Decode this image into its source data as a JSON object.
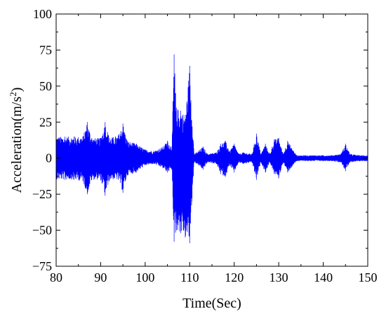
{
  "chart_data": {
    "type": "line",
    "title": "",
    "xlabel": "Time(Sec)",
    "ylabel": "Acceleration(m/s²)",
    "ylabel_parts": {
      "base": "Acceleration(m/s",
      "sup": "2",
      "close": ")"
    },
    "xlim": [
      80,
      150
    ],
    "ylim": [
      -75,
      100
    ],
    "xticks": [
      80,
      90,
      100,
      110,
      120,
      130,
      140,
      150
    ],
    "yticks": [
      -75,
      -50,
      -25,
      0,
      25,
      50,
      75,
      100
    ],
    "grid": false,
    "legend": "none",
    "series": [
      {
        "color": "#0000ff",
        "envelope": {
          "x": [
            80,
            82,
            84,
            86,
            87,
            88,
            90,
            91,
            92,
            94,
            95,
            96,
            98,
            100,
            102,
            104,
            105,
            106,
            106.5,
            107,
            108,
            109,
            110,
            111,
            112,
            113,
            114,
            116,
            117,
            118,
            119,
            120,
            121,
            122,
            124,
            125,
            126,
            127,
            128,
            129,
            130,
            131,
            132,
            134,
            136,
            138,
            140,
            142,
            144,
            145,
            146,
            148,
            150
          ],
          "upper": [
            15,
            15,
            15,
            15,
            25,
            14,
            14,
            25,
            14,
            16,
            24,
            12,
            10,
            6,
            5,
            8,
            12,
            8,
            72,
            35,
            33,
            30,
            64,
            3,
            5,
            8,
            3,
            4,
            10,
            12,
            5,
            10,
            3,
            4,
            3,
            17,
            3,
            10,
            3,
            13,
            14,
            3,
            12,
            2,
            2,
            2,
            2,
            2,
            3,
            10,
            3,
            2,
            2
          ],
          "lower": [
            -15,
            -15,
            -15,
            -16,
            -25,
            -15,
            -15,
            -26,
            -15,
            -15,
            -24,
            -12,
            -10,
            -5,
            -4,
            -7,
            -10,
            -8,
            -58,
            -50,
            -52,
            -55,
            -59,
            -3,
            -5,
            -8,
            -3,
            -4,
            -11,
            -13,
            -5,
            -10,
            -3,
            -4,
            -3,
            -15,
            -3,
            -10,
            -3,
            -11,
            -14,
            -3,
            -10,
            -2,
            -2,
            -2,
            -2,
            -2,
            -3,
            -9,
            -3,
            -2,
            -2
          ]
        }
      }
    ]
  }
}
